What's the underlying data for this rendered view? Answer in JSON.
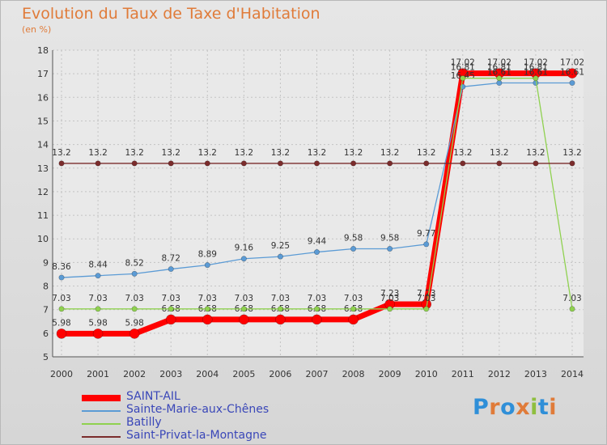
{
  "chart_data": {
    "type": "line",
    "title": "Evolution du Taux de Taxe d'Habitation",
    "subtitle": "(en %)",
    "xlabel": "",
    "ylabel": "",
    "x": [
      "2000",
      "2001",
      "2002",
      "2003",
      "2004",
      "2005",
      "2006",
      "2007",
      "2008",
      "2009",
      "2010",
      "2011",
      "2012",
      "2013",
      "2014"
    ],
    "ylim": [
      5,
      18
    ],
    "yticks": [
      5,
      6,
      7,
      8,
      9,
      10,
      11,
      12,
      13,
      14,
      15,
      16,
      17,
      18
    ],
    "grid": true,
    "legend_position": "bottom-left",
    "series": [
      {
        "name": "SAINT-AIL",
        "color": "#ff0000",
        "values": [
          5.98,
          5.98,
          5.98,
          6.58,
          6.58,
          6.58,
          6.58,
          6.58,
          6.58,
          7.23,
          7.23,
          17.02,
          17.02,
          17.02,
          17.02
        ],
        "labels": [
          "5.98",
          "5.98",
          "5.98",
          "6.58",
          "6.58",
          "6.58",
          "6.58",
          "6.58",
          "6.58",
          "7.23",
          "7.23",
          "17.02",
          "17.02",
          "17.02",
          "17.02"
        ]
      },
      {
        "name": "Sainte-Marie-aux-Chênes",
        "color": "#5b9bd5",
        "values": [
          8.36,
          8.44,
          8.52,
          8.72,
          8.89,
          9.16,
          9.25,
          9.44,
          9.58,
          9.58,
          9.77,
          16.45,
          16.61,
          16.61,
          16.61
        ],
        "labels": [
          "8.36",
          "8.44",
          "8.52",
          "8.72",
          "8.89",
          "9.16",
          "9.25",
          "9.44",
          "9.58",
          "9.58",
          "9.77",
          "16.45",
          "16.61",
          "16.61",
          "16.61"
        ]
      },
      {
        "name": "Batilly",
        "color": "#8fd14f",
        "values": [
          7.03,
          7.03,
          7.03,
          7.03,
          7.03,
          7.03,
          7.03,
          7.03,
          7.03,
          7.03,
          7.03,
          16.81,
          16.81,
          16.81,
          7.03
        ],
        "labels": [
          "7.03",
          "7.03",
          "7.03",
          "7.03",
          "7.03",
          "7.03",
          "7.03",
          "7.03",
          "7.03",
          "7.03",
          "7.03",
          "16.81",
          "16.81",
          "16.81",
          "7.03"
        ]
      },
      {
        "name": "Saint-Privat-la-Montagne",
        "color": "#7b2c2c",
        "values": [
          13.2,
          13.2,
          13.2,
          13.2,
          13.2,
          13.2,
          13.2,
          13.2,
          13.2,
          13.2,
          13.2,
          13.2,
          13.2,
          13.2,
          13.2
        ],
        "labels": [
          "13.2",
          "13.2",
          "13.2",
          "13.2",
          "13.2",
          "13.2",
          "13.2",
          "13.2",
          "13.2",
          "13.2",
          "13.2",
          "13.2",
          "13.2",
          "13.2",
          "13.2"
        ]
      }
    ]
  },
  "logo": {
    "letters": [
      "P",
      "r",
      "o",
      "x",
      "i",
      "t",
      "i"
    ],
    "colors": [
      "#2f8fd8",
      "#e07b39",
      "#2f8fd8",
      "#e07b39",
      "#8fbf3f",
      "#2f8fd8",
      "#e07b39"
    ]
  }
}
